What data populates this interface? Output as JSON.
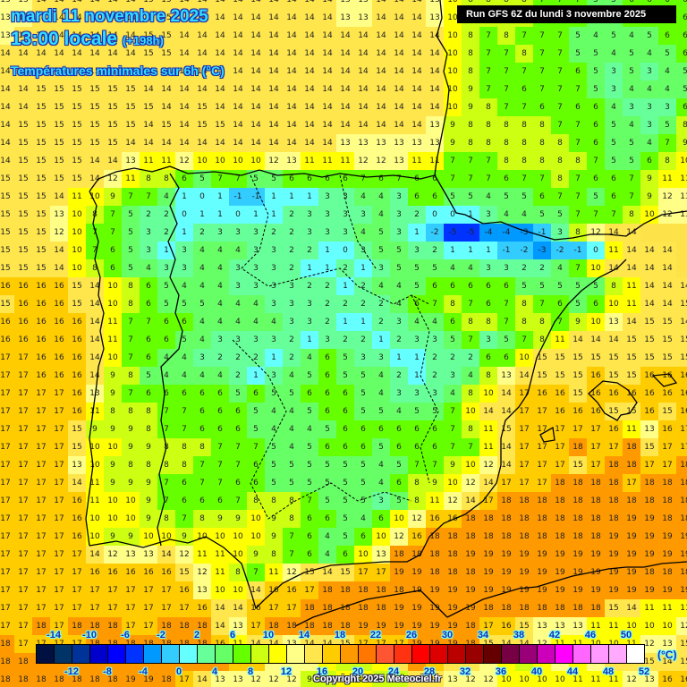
{
  "header": {
    "date": "mardi 11 novembre 2025",
    "time": "13:00 locale",
    "offset": "(+198h)",
    "variable": "Températures minimales sur 6h (°C)",
    "run": "Run GFS 6Z du lundi 3 novembre 2025"
  },
  "legend": {
    "unit": "(°C)",
    "colors": [
      "#001040",
      "#003366",
      "#003399",
      "#0000cc",
      "#0000ff",
      "#0033ff",
      "#0099ff",
      "#33ccff",
      "#66ffff",
      "#66ff99",
      "#66ff66",
      "#66ff00",
      "#ccff11",
      "#ffff00",
      "#ffff88",
      "#ffe64d",
      "#ffcc00",
      "#ff9900",
      "#ff7700",
      "#ff5533",
      "#ff3311",
      "#ff0000",
      "#dd0000",
      "#bb0000",
      "#990000",
      "#660000",
      "#770044",
      "#990077",
      "#cc00bb",
      "#ff00ff",
      "#ff66ff",
      "#ff99ff",
      "#ffaaff",
      "#ffffff"
    ],
    "top_ticks": [
      "-14",
      "-10",
      "-6",
      "-2",
      "2",
      "6",
      "10",
      "14",
      "18",
      "22",
      "26",
      "30",
      "34",
      "38",
      "42",
      "46",
      "50"
    ],
    "bottom_ticks": [
      "-12",
      "-8",
      "-4",
      "0",
      "4",
      "8",
      "12",
      "16",
      "20",
      "24",
      "28",
      "32",
      "36",
      "40",
      "44",
      "48",
      "52"
    ]
  },
  "footer": {
    "copyright": "Copyright 2025 Meteociel.fr"
  },
  "map": {
    "cell_size": 20,
    "cols": 39,
    "rows": 38,
    "grid": [
      "13 13 14 14 14 14 14 14 15 15 14 14 14 14 14 14 14 14 14 13 13 14 14 14 13 10 8 8 8 8 7 7 7 5 5 6 6 6 6",
      "13 14 14 14 14 14 14 14 15 15 14 14 14 14 14 14 14 14 14 14 14 14 14 14 14 10 8 7 8 7 7 7 5 4 5 4 5 6 6",
      "14 14 14 14 14 14 14 14 15 15 14 14 14 14 14 14 14 14 14 14 14 14 14 14 14 10 8 7 7 8 7 7 5 5 4 5 4 5 6",
      "14 14 14 14 15 15 15 15 14 14 14 14 14 14 14 14 14 14 14 14 14 14 14 14 14 10 8 7 7 7 7 7 6 5 3 5 3 4 5",
      "14 14 15 15 15 15 15 15 14 14 14 14 14 14 14 14 14 14 14 14 14 14 14 14 14 10 9 7 7 6 7 7 7 5 3 4 4 4 5",
      "14 14 15 15 15 15 15 15 15 14 14 15 14 14 14 14 14 14 14 14 14 14 14 14 14 10 9 8 7 7 6 7 6 6 4 3 3 3 6",
      "14 15 15 15 15 15 15 15 14 15 14 15 15 14 14 14 14 14 14 14 14 14 14 14 13 9 8 8 8 8 8 7 7 6 5 4 3 5 8",
      "14 15 15 15 15 15 15 14 14 14 14 14 14 14 14 14 14 14 14 13 13 13 13 13 13 9 8 8 8 8 8 8 7 6 5 5 4 7 9",
      "14 15 15 15 15 14 14 13 11 11 12 10 10 10 10 12 13 11 11 11 12 12 13 11 11 7 7 7 8 8 8 8 8 7 5 5 6 8 10",
      "15 15 15 15 15 14 12 11 8 8 6 5 7 7 5 5 6 6 6 6 7 6 7 6 6 7 7 7 6 7 7 8 7 6 6 7 9 11 11",
      "15 15 15 14 11 10 9 7 7 4 1 0 1 -1 -1 1 1 1 3 3 4 4 3 6 6 5 5 4 5 5 6 7 7 5 6 7 9 12 13",
      "15 15 15 13 10 8 7 5 2 2 0 1 1 0 1 1 2 3 3 3 3 4 3 2 0 0 1 3 4 4 5 5 7 7 7 8 10 12 13",
      "15 15 15 12 10 7 7 5 3 2 1 2 3 3 3 2 2 3 3 3 4 5 3 1 -2 -5 -5 -4 -4 -3 -1 3 8 12 14 14",
      "15 15 15 14 10 7 6 5 3 1 3 4 4 4 3 3 2 2 1 0 3 5 5 3 2 1 1 1 -1 -2 -3 -2 -1 0 11 14 14 14",
      "15 15 15 14 10 8 6 5 4 3 3 4 4 3 3 3 2 1 1 2 1 3 5 5 5 4 4 3 3 2 2 4 7 10 14 14 14 14",
      "16 16 16 16 15 14 10 8 6 5 4 4 4 3 3 3 3 2 2 1 2 4 4 5 6 6 6 6 6 5 5 5 5 5 8 11 14 14 14",
      "15 16 16 16 15 14 10 8 6 5 5 5 4 4 4 3 3 3 2 2 2 2 4 6 7 8 7 6 7 8 7 6 5 6 10 11 14 14 15",
      "16 16 16 16 16 14 11 7 7 6 6 4 4 4 4 4 3 3 2 1 1 2 3 4 4 6 8 8 7 8 8 7 9 10 13 14 15 15 14",
      "16 16 16 16 16 14 11 7 6 6 5 4 3 3 3 3 2 1 3 2 2 1 2 3 3 5 7 3 5 7 8 11 14 14 14 15 15 15 15",
      "17 17 16 16 16 14 10 7 6 4 4 3 2 2 2 1 2 4 6 5 3 3 1 1 2 2 2 6 6 10 15 15 15 15 15 15 15 15 15",
      "17 17 16 16 16 14 9 8 5 4 4 4 4 2 1 3 4 5 6 5 5 4 2 1 2 3 4 8 13 14 15 15 15 16 15 15 16 16 16",
      "17 17 17 17 16 13 9 7 6 6 6 6 6 5 6 5 5 6 6 6 5 4 3 3 3 4 8 10 14 17 16 16 15 16 16 16 16 16 16",
      "17 17 17 17 16 11 8 8 8 7 7 6 6 6 5 4 4 5 6 6 5 5 4 5 5 7 10 14 14 17 17 16 16 16 15 15 16 15 16",
      "17 17 17 17 15 9 9 9 8 7 7 6 6 6 5 4 4 4 5 6 6 6 6 6 6 7 8 11 15 17 17 17 17 17 16 11 13 16 17",
      "17 17 17 17 15 10 10 9 9 8 8 8 7 7 7 5 4 5 6 6 6 5 6 6 6 7 7 11 14 17 17 17 18 17 17 18 15 17 17",
      "17 17 17 17 13 10 9 8 8 8 8 7 7 7 6 5 5 5 5 5 5 4 5 7 7 9 10 12 14 17 17 17 15 17 18 18 17 17 18",
      "17 17 17 17 14 11 9 9 9 7 6 7 7 6 6 5 5 5 5 5 5 4 6 8 9 10 12 14 17 17 17 18 18 18 18 17 18 18 18",
      "17 17 17 17 16 11 10 10 9 7 6 6 6 7 8 8 8 7 5 5 5 3 5 8 11 12 14 17 18 18 18 18 18 18 18 18 18 18 18",
      "17 17 17 17 16 10 10 10 9 8 7 8 9 9 10 9 8 6 6 5 4 6 10 12 16 16 18 18 18 18 18 18 18 18 18 19 19 18 18",
      "17 17 17 17 16 10 9 9 10 10 9 10 10 10 10 9 7 6 4 5 6 10 12 16 18 18 18 18 18 18 18 18 18 18 19 19 19 19 19",
      "17 17 17 17 17 14 12 13 13 14 12 11 11 10 9 8 7 6 4 6 10 13 18 18 18 18 19 19 19 19 19 19 19 19 19 19 19 19 19",
      "17 17 17 17 17 16 16 16 16 16 15 12 11 8 7 11 12 15 14 15 17 17 19 19 18 18 18 19 19 19 19 19 19 19 19 19 18 18 18",
      "17 17 17 17 17 17 17 17 17 17 16 13 10 10 14 16 16 17 18 18 18 18 18 19 19 19 19 19 19 19 19 19 19 19 19 19 19 19 19",
      "17 17 17 17 17 17 17 17 17 17 17 16 14 14 16 17 17 18 18 18 18 18 19 19 19 19 19 18 18 18 18 18 18 18 15 14 11 11 11",
      "17 17 18 17 18 18 18 17 17 18 18 18 14 13 17 18 18 18 18 18 19 19 19 19 19 19 18 17 16 15 13 13 13 11 11 10 10 10 12",
      "18 17 17 17 17 18 18 18 18 18 18 18 16 11 14 14 13 14 14 15 17 17 17 19 19 19 18 15 14 14 12 11 11 10 10 11 12 13 15",
      "18 18 18 18 18 18 18 18 18 18 18 19 18 17 16 13 12 12 11 8 9 10 14 18 16 14 14 12 10 9 10 12 11 13 14 14 15 14 15",
      "18 18 18 18 18 18 18 19 19 18 17 14 13 13 12 12 12 9 9 10 10 9 9 14 14 13 12 12 10 10 10 10 11 11 11 12 13 16 16"
    ]
  }
}
